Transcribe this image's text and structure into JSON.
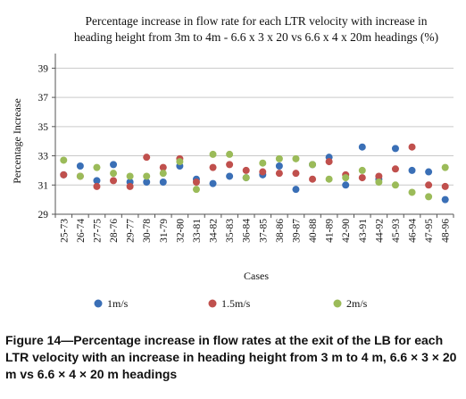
{
  "chart_data": {
    "type": "scatter",
    "title_lines": [
      "Percentage increase in flow rate for each LTR velocity with increase in",
      "heading height from 3m to 4m - 6.6 x 3 x 20 vs 6.6 x 4 x 20m headings (%)"
    ],
    "xlabel": "Cases",
    "ylabel": "Percentage Increase",
    "ylim": [
      29,
      40
    ],
    "yticks": [
      "29",
      "31",
      "33",
      "35",
      "37",
      "39"
    ],
    "grid": "horizontal",
    "legend_position": "bottom",
    "categories": [
      "25-73",
      "26-74",
      "27-75",
      "28-76",
      "29-77",
      "30-78",
      "31-79",
      "32-80",
      "33-81",
      "34-82",
      "35-83",
      "36-84",
      "37-85",
      "38-86",
      "39-87",
      "40-88",
      "41-89",
      "42-90",
      "43-91",
      "44-92",
      "45-93",
      "46-94",
      "47-95",
      "48-96"
    ],
    "series": [
      {
        "name": "1m/s",
        "color": "#3a6fb6",
        "values": [
          31.7,
          32.3,
          31.3,
          32.4,
          31.2,
          31.2,
          31.2,
          32.3,
          31.4,
          31.1,
          31.6,
          31.5,
          31.7,
          32.3,
          30.7,
          32.4,
          32.9,
          31.0,
          33.6,
          31.4,
          33.5,
          32.0,
          31.9,
          30.0
        ]
      },
      {
        "name": "1.5m/s",
        "color": "#c0504d",
        "values": [
          31.7,
          31.6,
          30.9,
          31.3,
          30.9,
          32.9,
          32.2,
          32.8,
          31.2,
          32.2,
          32.4,
          32.0,
          31.9,
          31.8,
          31.8,
          31.4,
          32.6,
          31.7,
          31.5,
          31.6,
          32.1,
          33.6,
          31.0,
          30.9
        ]
      },
      {
        "name": "2m/s",
        "color": "#9bbb59",
        "values": [
          32.7,
          31.6,
          32.2,
          31.8,
          31.6,
          31.6,
          31.8,
          32.6,
          30.7,
          33.1,
          33.1,
          31.5,
          32.5,
          32.8,
          32.8,
          32.4,
          31.4,
          31.5,
          32.0,
          31.2,
          31.0,
          30.5,
          30.2,
          32.2
        ]
      }
    ]
  },
  "caption": "Figure 14—Percentage increase in flow rates at the exit of the LB for each LTR velocity with an increase in heading height from 3 m to 4 m, 6.6 × 3 × 20 m vs 6.6 × 4 × 20 m headings"
}
